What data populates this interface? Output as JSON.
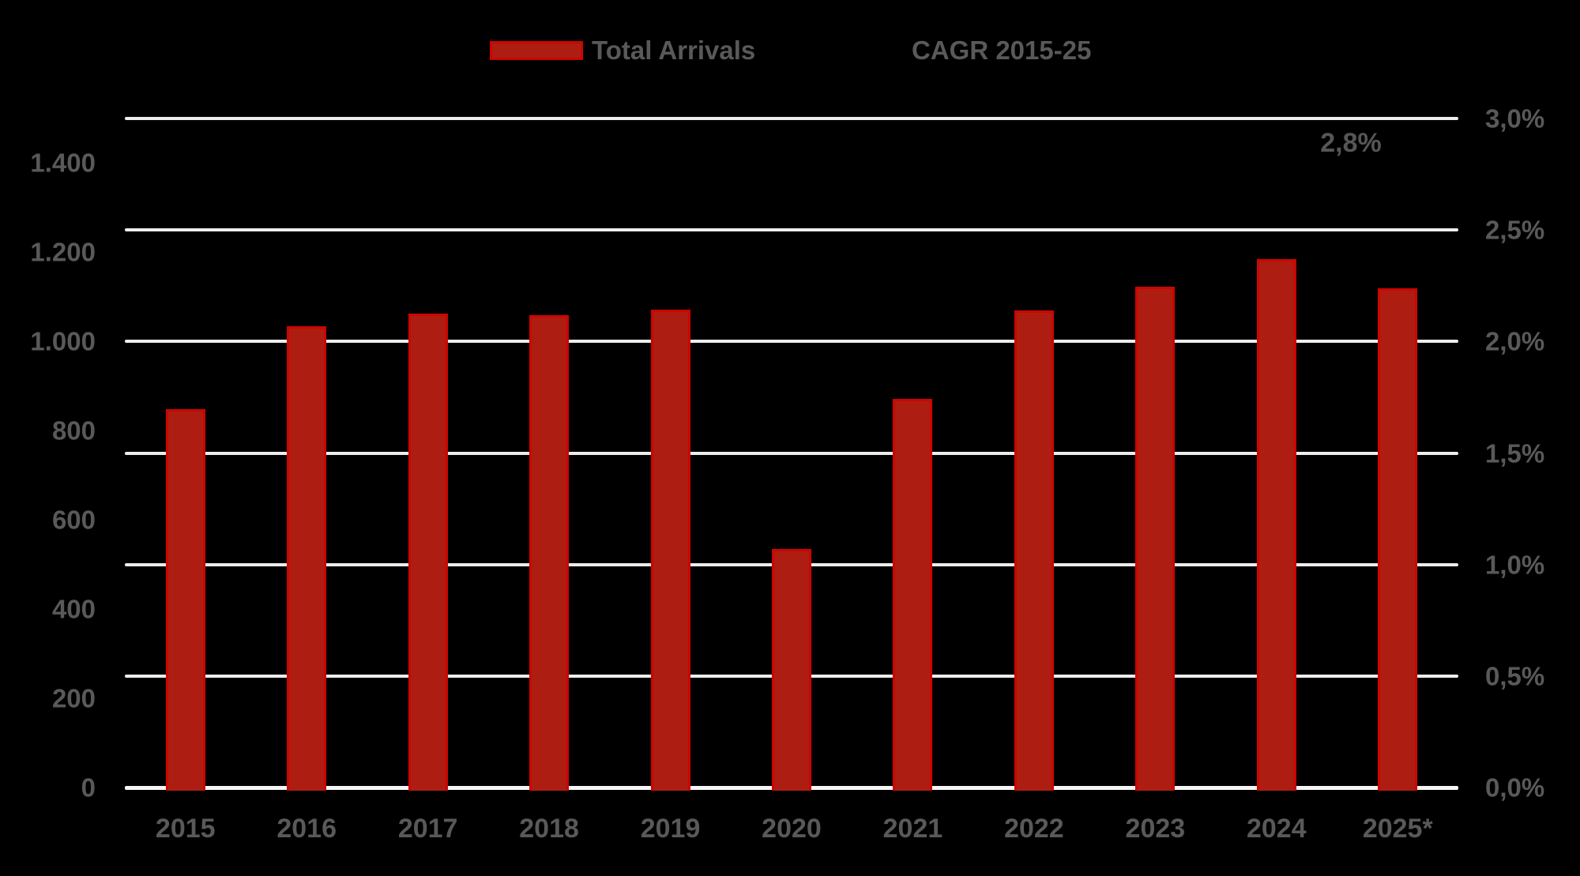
{
  "annotation": {
    "cagr_label": "2,8%"
  },
  "legend": {
    "items": [
      {
        "label": "Total Arrivals",
        "swatch": "bar"
      },
      {
        "label": "CAGR 2015-25",
        "swatch": "none"
      }
    ]
  },
  "colors": {
    "background": "#000000",
    "bar_fill": "#AE1D12",
    "bar_border": "#CC0500",
    "gridline": "#EDEDED",
    "axis_line": "#F5F5F5",
    "text": "#595959"
  },
  "chart_data": {
    "type": "bar",
    "title": "",
    "categories": [
      "2015",
      "2016",
      "2017",
      "2018",
      "2019",
      "2020",
      "2021",
      "2022",
      "2023",
      "2024",
      "2025*"
    ],
    "series": [
      {
        "name": "Total Arrivals",
        "type": "bar",
        "axis": "left",
        "values": [
          848,
          1035,
          1063,
          1059,
          1072,
          535,
          872,
          1070,
          1123,
          1185,
          1119
        ]
      },
      {
        "name": "CAGR 2015-25",
        "type": "point-label",
        "axis": "right",
        "value_pct": 2.8,
        "data_label": "2,8%",
        "label_category": "2025*"
      }
    ],
    "left_axis": {
      "min": 0,
      "max": 1500,
      "label_interval": 200,
      "tick_labels": [
        "0",
        "200",
        "400",
        "600",
        "800",
        "1.000",
        "1.200",
        "1.400"
      ]
    },
    "right_axis": {
      "min": 0.0,
      "max": 3.0,
      "label_interval": 0.5,
      "tick_labels": [
        "0,0%",
        "0,5%",
        "1,0%",
        "1,5%",
        "2,0%",
        "2,5%",
        "3,0%"
      ]
    },
    "legend_position": "top",
    "grid": "horizontal gridlines at right-axis ticks (every 0,5%)"
  }
}
